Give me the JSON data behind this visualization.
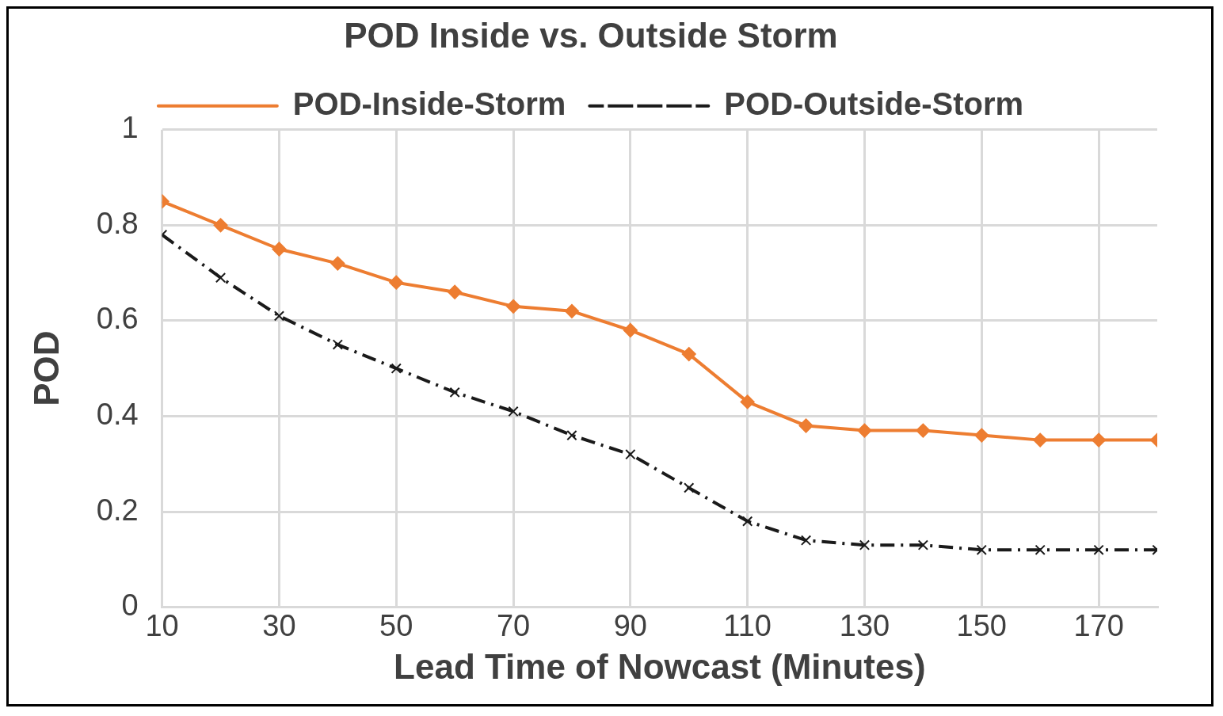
{
  "chart_data": {
    "type": "line",
    "title": "POD Inside vs. Outside Storm",
    "xlabel": "Lead Time of Nowcast (Minutes)",
    "ylabel": "POD",
    "x": [
      10,
      20,
      30,
      40,
      50,
      60,
      70,
      80,
      90,
      100,
      110,
      120,
      130,
      140,
      150,
      160,
      170,
      180
    ],
    "xlim": [
      10,
      180
    ],
    "xticks": [
      10,
      30,
      50,
      70,
      90,
      110,
      130,
      150,
      170
    ],
    "ylim": [
      0,
      1
    ],
    "yticks": [
      0,
      0.2,
      0.4,
      0.6,
      0.8,
      1
    ],
    "grid": true,
    "legend": "top",
    "series": [
      {
        "name": "POD-Inside-Storm",
        "color": "#ed7d31",
        "marker": "diamond",
        "line_style": "solid",
        "values": [
          0.85,
          0.8,
          0.75,
          0.72,
          0.68,
          0.66,
          0.63,
          0.62,
          0.58,
          0.53,
          0.43,
          0.38,
          0.37,
          0.37,
          0.36,
          0.35,
          0.35,
          0.35
        ]
      },
      {
        "name": "POD-Outside-Storm",
        "color": "#1a1a1a",
        "marker": "cross",
        "line_style": "dashed",
        "values": [
          0.78,
          0.69,
          0.61,
          0.55,
          0.5,
          0.45,
          0.41,
          0.36,
          0.32,
          0.25,
          0.18,
          0.14,
          0.13,
          0.13,
          0.12,
          0.12,
          0.12,
          0.12
        ]
      }
    ]
  }
}
